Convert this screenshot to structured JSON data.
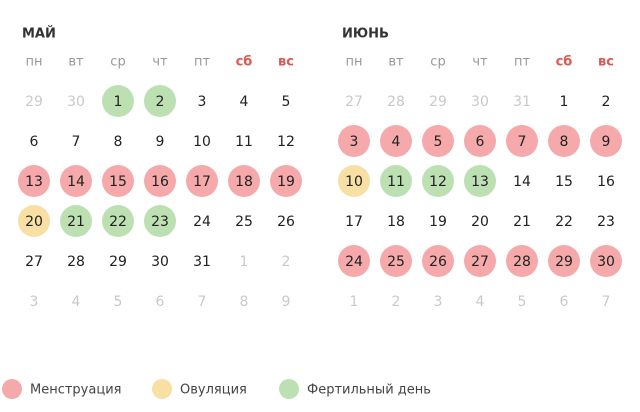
{
  "months": [
    {
      "title": "МАЙ",
      "weekdays": [
        "пн",
        "вт",
        "ср",
        "чт",
        "пт",
        "сб",
        "вс"
      ],
      "weeks": [
        [
          {
            "d": 29,
            "s": "other"
          },
          {
            "d": 30,
            "s": "other"
          },
          {
            "d": 1,
            "s": "fertile"
          },
          {
            "d": 2,
            "s": "fertile"
          },
          {
            "d": 3,
            "s": "normal"
          },
          {
            "d": 4,
            "s": "normal"
          },
          {
            "d": 5,
            "s": "normal"
          }
        ],
        [
          {
            "d": 6,
            "s": "normal"
          },
          {
            "d": 7,
            "s": "normal"
          },
          {
            "d": 8,
            "s": "normal"
          },
          {
            "d": 9,
            "s": "normal"
          },
          {
            "d": 10,
            "s": "normal"
          },
          {
            "d": 11,
            "s": "normal"
          },
          {
            "d": 12,
            "s": "normal"
          }
        ],
        [
          {
            "d": 13,
            "s": "period"
          },
          {
            "d": 14,
            "s": "period"
          },
          {
            "d": 15,
            "s": "period"
          },
          {
            "d": 16,
            "s": "period"
          },
          {
            "d": 17,
            "s": "period"
          },
          {
            "d": 18,
            "s": "period"
          },
          {
            "d": 19,
            "s": "period"
          }
        ],
        [
          {
            "d": 20,
            "s": "ovulation"
          },
          {
            "d": 21,
            "s": "fertile"
          },
          {
            "d": 22,
            "s": "fertile"
          },
          {
            "d": 23,
            "s": "fertile"
          },
          {
            "d": 24,
            "s": "normal"
          },
          {
            "d": 25,
            "s": "normal"
          },
          {
            "d": 26,
            "s": "normal"
          }
        ],
        [
          {
            "d": 27,
            "s": "normal"
          },
          {
            "d": 28,
            "s": "normal"
          },
          {
            "d": 29,
            "s": "normal"
          },
          {
            "d": 30,
            "s": "normal"
          },
          {
            "d": 31,
            "s": "normal"
          },
          {
            "d": 1,
            "s": "other"
          },
          {
            "d": 2,
            "s": "other"
          }
        ],
        [
          {
            "d": 3,
            "s": "other"
          },
          {
            "d": 4,
            "s": "other"
          },
          {
            "d": 5,
            "s": "other"
          },
          {
            "d": 6,
            "s": "other"
          },
          {
            "d": 7,
            "s": "other"
          },
          {
            "d": 8,
            "s": "other"
          },
          {
            "d": 9,
            "s": "other"
          }
        ]
      ]
    },
    {
      "title": "ИЮНЬ",
      "weekdays": [
        "пн",
        "вт",
        "ср",
        "чт",
        "пт",
        "сб",
        "вс"
      ],
      "weeks": [
        [
          {
            "d": 27,
            "s": "other"
          },
          {
            "d": 28,
            "s": "other"
          },
          {
            "d": 29,
            "s": "other"
          },
          {
            "d": 30,
            "s": "other"
          },
          {
            "d": 31,
            "s": "other"
          },
          {
            "d": 1,
            "s": "normal"
          },
          {
            "d": 2,
            "s": "normal"
          }
        ],
        [
          {
            "d": 3,
            "s": "period"
          },
          {
            "d": 4,
            "s": "period"
          },
          {
            "d": 5,
            "s": "period"
          },
          {
            "d": 6,
            "s": "period"
          },
          {
            "d": 7,
            "s": "period"
          },
          {
            "d": 8,
            "s": "period"
          },
          {
            "d": 9,
            "s": "period"
          }
        ],
        [
          {
            "d": 10,
            "s": "ovulation"
          },
          {
            "d": 11,
            "s": "fertile"
          },
          {
            "d": 12,
            "s": "fertile"
          },
          {
            "d": 13,
            "s": "fertile"
          },
          {
            "d": 14,
            "s": "normal"
          },
          {
            "d": 15,
            "s": "normal"
          },
          {
            "d": 16,
            "s": "normal"
          }
        ],
        [
          {
            "d": 17,
            "s": "normal"
          },
          {
            "d": 18,
            "s": "normal"
          },
          {
            "d": 19,
            "s": "normal"
          },
          {
            "d": 20,
            "s": "normal"
          },
          {
            "d": 21,
            "s": "normal"
          },
          {
            "d": 22,
            "s": "normal"
          },
          {
            "d": 23,
            "s": "normal"
          }
        ],
        [
          {
            "d": 24,
            "s": "period"
          },
          {
            "d": 25,
            "s": "period"
          },
          {
            "d": 26,
            "s": "period"
          },
          {
            "d": 27,
            "s": "period"
          },
          {
            "d": 28,
            "s": "period"
          },
          {
            "d": 29,
            "s": "period"
          },
          {
            "d": 30,
            "s": "period"
          }
        ],
        [
          {
            "d": 1,
            "s": "other"
          },
          {
            "d": 2,
            "s": "other"
          },
          {
            "d": 3,
            "s": "other"
          },
          {
            "d": 4,
            "s": "other"
          },
          {
            "d": 5,
            "s": "other"
          },
          {
            "d": 6,
            "s": "other"
          },
          {
            "d": 7,
            "s": "other"
          }
        ]
      ]
    }
  ],
  "colors": {
    "period": "#f6a9aa",
    "ovulation": "#f8e0a4",
    "fertile": "#bde0b3"
  },
  "legend": [
    {
      "label": "Менструация",
      "state": "period"
    },
    {
      "label": "Овуляция",
      "state": "ovulation"
    },
    {
      "label": "Фертильный день",
      "state": "fertile"
    }
  ]
}
